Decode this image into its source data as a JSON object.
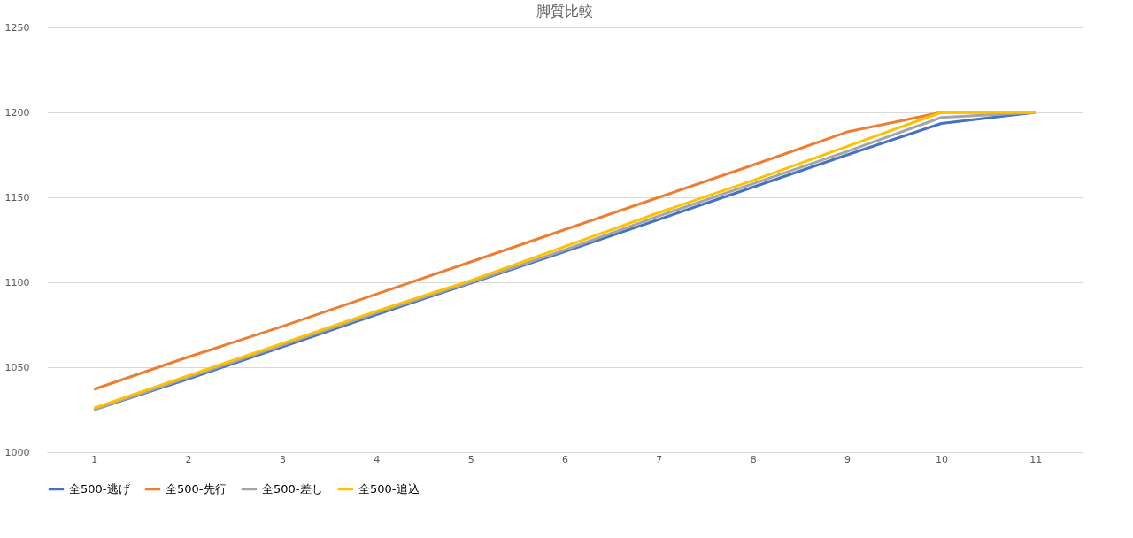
{
  "chart_data": {
    "type": "line",
    "title": "脚質比較",
    "categories": [
      "1",
      "2",
      "3",
      "4",
      "5",
      "6",
      "7",
      "8",
      "9",
      "10",
      "11"
    ],
    "series": [
      {
        "name": "全500-逃げ",
        "color": "#4472c4",
        "values": [
          1025,
          1043,
          1062,
          1081,
          1099.5,
          1118,
          1137,
          1156,
          1175,
          1193.5,
          1200
        ]
      },
      {
        "name": "全500-先行",
        "color": "#ed7d31",
        "values": [
          1037,
          1056,
          1074,
          1093,
          1112,
          1131,
          1150,
          1169,
          1188.5,
          1200,
          1200
        ]
      },
      {
        "name": "全500-差し",
        "color": "#a5a5a5",
        "values": [
          1025,
          1044,
          1063,
          1082,
          1100,
          1119,
          1139,
          1158,
          1177,
          1197,
          1200
        ]
      },
      {
        "name": "全500-追込",
        "color": "#ffc000",
        "values": [
          1026,
          1045,
          1064,
          1083,
          1101,
          1121,
          1141,
          1160,
          1180,
          1200,
          1200
        ]
      }
    ],
    "ylim": [
      1000,
      1250
    ],
    "yticks": [
      1000,
      1050,
      1100,
      1150,
      1200,
      1250
    ],
    "grid": "y",
    "legend": "bottom",
    "marker": "none",
    "line_style": "solid"
  }
}
